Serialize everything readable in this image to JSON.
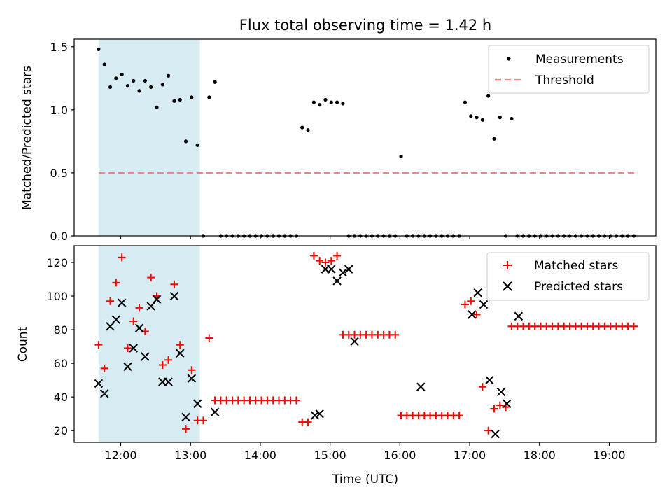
{
  "chart_data": [
    {
      "type": "scatter",
      "title": "Flux total observing time = 1.42 h",
      "xlabel": "",
      "ylabel": "Matched/Predicted stars",
      "ylim": [
        0,
        1.56
      ],
      "yticks": [
        0.0,
        0.5,
        1.0,
        1.5
      ],
      "ytick_labels": [
        "0.0",
        "0.5",
        "1.0",
        "1.5"
      ],
      "legend": {
        "position": "top-right",
        "items": [
          "Measurements",
          "Threshold"
        ]
      },
      "colors": {
        "measurements": "#000000",
        "threshold": "#ff7f7f",
        "shade": "#add8e6"
      },
      "shaded_region": [
        "11:41",
        "13:08"
      ],
      "threshold": {
        "value": 0.5,
        "x": [
          "11:41",
          "19:24"
        ]
      },
      "series": [
        {
          "name": "Measurements",
          "x": [
            "11:41",
            "11:46",
            "11:51",
            "11:56",
            "12:01",
            "12:06",
            "12:11",
            "12:16",
            "12:21",
            "12:26",
            "12:31",
            "12:36",
            "12:41",
            "12:46",
            "12:51",
            "12:56",
            "13:01",
            "13:06",
            "13:11",
            "13:16",
            "13:21",
            "13:26",
            "13:31",
            "13:36",
            "13:41",
            "13:46",
            "13:51",
            "13:56",
            "14:01",
            "14:06",
            "14:11",
            "14:16",
            "14:21",
            "14:26",
            "14:31",
            "14:36",
            "14:41",
            "14:46",
            "14:51",
            "14:56",
            "15:01",
            "15:06",
            "15:11",
            "15:16",
            "15:21",
            "15:26",
            "15:31",
            "15:36",
            "15:41",
            "15:46",
            "15:51",
            "15:56",
            "16:01",
            "16:06",
            "16:11",
            "16:16",
            "16:21",
            "16:26",
            "16:31",
            "16:36",
            "16:41",
            "16:46",
            "16:51",
            "16:56",
            "17:01",
            "17:06",
            "17:11",
            "17:16",
            "17:21",
            "17:26",
            "17:31",
            "17:36",
            "17:41",
            "17:46",
            "17:51",
            "17:56",
            "18:01",
            "18:06",
            "18:11",
            "18:16",
            "18:21",
            "18:26",
            "18:31",
            "18:36",
            "18:41",
            "18:46",
            "18:51",
            "18:56",
            "19:01",
            "19:06",
            "19:11",
            "19:16",
            "19:21"
          ],
          "y": [
            1.48,
            1.36,
            1.18,
            1.25,
            1.28,
            1.19,
            1.23,
            1.15,
            1.23,
            1.18,
            1.02,
            1.2,
            1.27,
            1.07,
            1.08,
            0.75,
            1.1,
            0.72,
            0.0,
            1.1,
            1.22,
            0.0,
            0.0,
            0.0,
            0.0,
            0.0,
            0.0,
            0.0,
            0.0,
            0.0,
            0.0,
            0.0,
            0.0,
            0.0,
            0.0,
            0.86,
            0.84,
            1.06,
            1.04,
            1.08,
            1.06,
            1.06,
            1.05,
            0.0,
            0.0,
            0.0,
            0.0,
            0.0,
            0.0,
            0.0,
            0.0,
            0.0,
            0.63,
            0.0,
            0.0,
            0.0,
            0.0,
            0.0,
            0.0,
            0.0,
            0.0,
            0.0,
            0.0,
            1.06,
            0.95,
            0.94,
            0.92,
            1.11,
            0.77,
            0.94,
            0.0,
            0.93,
            0.0,
            0.0,
            0.0,
            0.0,
            0.0,
            0.0,
            0.0,
            0.0,
            0.0,
            0.0,
            0.0,
            0.0,
            0.0,
            0.0,
            0.0,
            0.0,
            0.0,
            0.0,
            0.0,
            0.0,
            0.0
          ]
        }
      ]
    },
    {
      "type": "scatter",
      "title": "",
      "xlabel": "Time (UTC)",
      "ylabel": "Count",
      "ylim": [
        13,
        130
      ],
      "yticks": [
        20,
        40,
        60,
        80,
        100,
        120
      ],
      "ytick_labels": [
        "20",
        "40",
        "60",
        "80",
        "100",
        "120"
      ],
      "xticks": [
        "12:00",
        "13:00",
        "14:00",
        "15:00",
        "16:00",
        "17:00",
        "18:00",
        "19:00"
      ],
      "xlim": [
        "11:20",
        "19:40"
      ],
      "legend": {
        "position": "top-right",
        "items": [
          "Matched stars",
          "Predicted stars"
        ]
      },
      "colors": {
        "matched": "#ff0000",
        "predicted": "#000000",
        "shade": "#add8e6"
      },
      "shaded_region": [
        "11:41",
        "13:08"
      ],
      "series": [
        {
          "name": "Matched stars",
          "x": [
            "11:41",
            "11:46",
            "11:51",
            "11:56",
            "12:01",
            "12:06",
            "12:11",
            "12:16",
            "12:21",
            "12:26",
            "12:31",
            "12:36",
            "12:41",
            "12:46",
            "12:51",
            "12:56",
            "13:01",
            "13:06",
            "13:11",
            "13:16",
            "13:21",
            "13:26",
            "13:31",
            "13:36",
            "13:41",
            "13:46",
            "13:51",
            "13:56",
            "14:01",
            "14:06",
            "14:11",
            "14:16",
            "14:21",
            "14:26",
            "14:31",
            "14:36",
            "14:41",
            "14:46",
            "14:51",
            "14:56",
            "15:01",
            "15:06",
            "15:11",
            "15:16",
            "15:21",
            "15:26",
            "15:31",
            "15:36",
            "15:41",
            "15:46",
            "15:51",
            "15:56",
            "16:01",
            "16:06",
            "16:11",
            "16:16",
            "16:21",
            "16:26",
            "16:31",
            "16:36",
            "16:41",
            "16:46",
            "16:51",
            "16:56",
            "17:01",
            "17:06",
            "17:11",
            "17:16",
            "17:21",
            "17:26",
            "17:31",
            "17:36",
            "17:41",
            "17:46",
            "17:51",
            "17:56",
            "18:01",
            "18:06",
            "18:11",
            "18:16",
            "18:21",
            "18:26",
            "18:31",
            "18:36",
            "18:41",
            "18:46",
            "18:51",
            "18:56",
            "19:01",
            "19:06",
            "19:11",
            "19:16",
            "19:21"
          ],
          "y": [
            71,
            57,
            97,
            108,
            123,
            69,
            85,
            93,
            79,
            111,
            100,
            59,
            62,
            107,
            71,
            21,
            56,
            26,
            26,
            75,
            38,
            38,
            38,
            38,
            38,
            38,
            38,
            38,
            38,
            38,
            38,
            38,
            38,
            38,
            38,
            25,
            25,
            124,
            121,
            120,
            121,
            124,
            77,
            77,
            77,
            77,
            77,
            77,
            77,
            77,
            77,
            77,
            29,
            29,
            29,
            29,
            29,
            29,
            29,
            29,
            29,
            29,
            29,
            95,
            97,
            89,
            46,
            20,
            33,
            35,
            34,
            82,
            82,
            82,
            82,
            82,
            82,
            82,
            82,
            82,
            82,
            82,
            82,
            82,
            82,
            82,
            82,
            82,
            82,
            82,
            82,
            82,
            82
          ]
        },
        {
          "name": "Predicted stars",
          "x": [
            "11:41",
            "11:46",
            "11:51",
            "11:56",
            "12:01",
            "12:06",
            "12:11",
            "12:16",
            "12:21",
            "12:26",
            "12:31",
            "12:36",
            "12:41",
            "12:46",
            "12:51",
            "12:56",
            "13:01",
            "13:06",
            "13:21",
            "14:47",
            "14:51",
            "14:56",
            "15:01",
            "15:06",
            "15:11",
            "15:16",
            "15:21",
            "16:18",
            "17:02",
            "17:07",
            "17:12",
            "17:17",
            "17:22",
            "17:27",
            "17:32",
            "17:42"
          ],
          "y": [
            48,
            42,
            82,
            86,
            96,
            58,
            69,
            81,
            64,
            94,
            98,
            49,
            49,
            100,
            66,
            28,
            51,
            36,
            31,
            29,
            30,
            116,
            116,
            109,
            114,
            116,
            73,
            46,
            89,
            102,
            95,
            50,
            18,
            43,
            36,
            88
          ]
        }
      ]
    }
  ]
}
